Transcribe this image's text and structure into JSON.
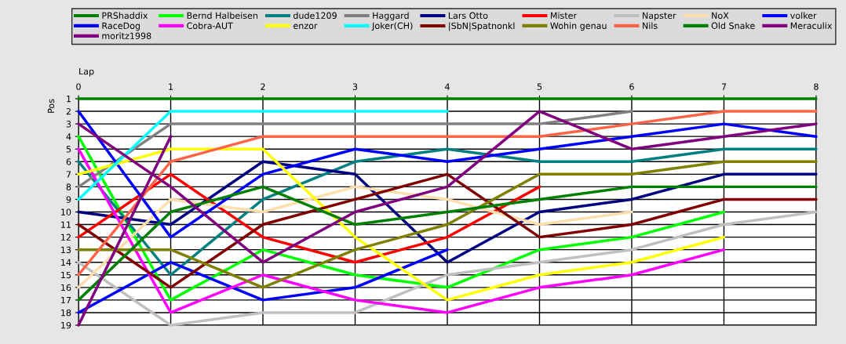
{
  "chart_data": {
    "type": "line",
    "xlabel": "Lap",
    "ylabel": "Pos",
    "x": [
      0,
      1,
      2,
      3,
      4,
      5,
      6,
      7,
      8
    ],
    "xlim": [
      0,
      8
    ],
    "xticks": [
      0,
      1,
      2,
      3,
      4,
      5,
      6,
      7,
      8
    ],
    "ylim": [
      19,
      1
    ],
    "yticks": [
      1,
      2,
      3,
      4,
      5,
      6,
      7,
      8,
      9,
      10,
      11,
      12,
      13,
      14,
      15,
      16,
      17,
      18,
      19
    ],
    "grid": true,
    "legend": "top",
    "marker": "none",
    "line_style": "solid",
    "series": [
      {
        "name": "PRShaddix",
        "color": "#008000",
        "values": [
          1,
          1,
          1,
          1,
          1,
          1,
          1,
          1,
          1
        ]
      },
      {
        "name": "Bernd Halbeisen",
        "color": "#00ff00",
        "values": [
          4,
          17,
          13,
          15,
          16,
          13,
          12,
          10,
          null
        ]
      },
      {
        "name": "dude1209",
        "color": "#008080",
        "values": [
          6,
          15,
          9,
          6,
          5,
          6,
          6,
          5,
          5
        ]
      },
      {
        "name": "Haggard",
        "color": "#808080",
        "values": [
          8,
          3,
          3,
          3,
          3,
          3,
          2,
          null,
          null
        ]
      },
      {
        "name": "Lars Otto",
        "color": "#000080",
        "values": [
          10,
          11,
          6,
          7,
          14,
          10,
          9,
          7,
          7
        ]
      },
      {
        "name": "Mister",
        "color": "#ff0000",
        "values": [
          12,
          7,
          12,
          14,
          12,
          8,
          null,
          null,
          null
        ]
      },
      {
        "name": "Napster",
        "color": "#c0c0c0",
        "values": [
          14,
          19,
          18,
          18,
          15,
          14,
          13,
          11,
          10
        ]
      },
      {
        "name": "NoX",
        "color": "#ffdead",
        "values": [
          16,
          9,
          10,
          8,
          9,
          11,
          10,
          null,
          null
        ]
      },
      {
        "name": "volker",
        "color": "#0000ff",
        "values": [
          2,
          12,
          7,
          5,
          6,
          5,
          4,
          3,
          4
        ]
      },
      {
        "name": "RaceDog",
        "color": "#0000ff",
        "values": [
          18,
          14,
          17,
          16,
          13,
          null,
          null,
          null,
          null
        ]
      },
      {
        "name": "Cobra-AUT",
        "color": "#ff00ff",
        "values": [
          5,
          18,
          15,
          17,
          18,
          16,
          15,
          13,
          null
        ]
      },
      {
        "name": "enzor",
        "color": "#ffff00",
        "values": [
          7,
          5,
          5,
          12,
          17,
          15,
          14,
          12,
          null
        ]
      },
      {
        "name": "Joker(CH)",
        "color": "#00ffff",
        "values": [
          9,
          2,
          2,
          2,
          2,
          null,
          null,
          null,
          null
        ]
      },
      {
        "name": "|SbN|Spatnonkl",
        "color": "#800000",
        "values": [
          11,
          16,
          11,
          9,
          7,
          12,
          11,
          9,
          9
        ]
      },
      {
        "name": "Wohin genau",
        "color": "#808000",
        "values": [
          13,
          13,
          16,
          13,
          11,
          7,
          7,
          6,
          6
        ]
      },
      {
        "name": "Nils",
        "color": "#ff6347",
        "values": [
          15,
          6,
          4,
          4,
          4,
          4,
          3,
          2,
          2
        ]
      },
      {
        "name": "Old Snake",
        "color": "#008000",
        "values": [
          17,
          10,
          8,
          11,
          10,
          9,
          8,
          8,
          8
        ]
      },
      {
        "name": "Meraculix",
        "color": "#800080",
        "values": [
          3,
          8,
          14,
          10,
          8,
          2,
          5,
          4,
          3
        ]
      },
      {
        "name": "moritz1998",
        "color": "#800080",
        "values": [
          19,
          4,
          null,
          null,
          null,
          null,
          null,
          null,
          null
        ]
      }
    ]
  }
}
